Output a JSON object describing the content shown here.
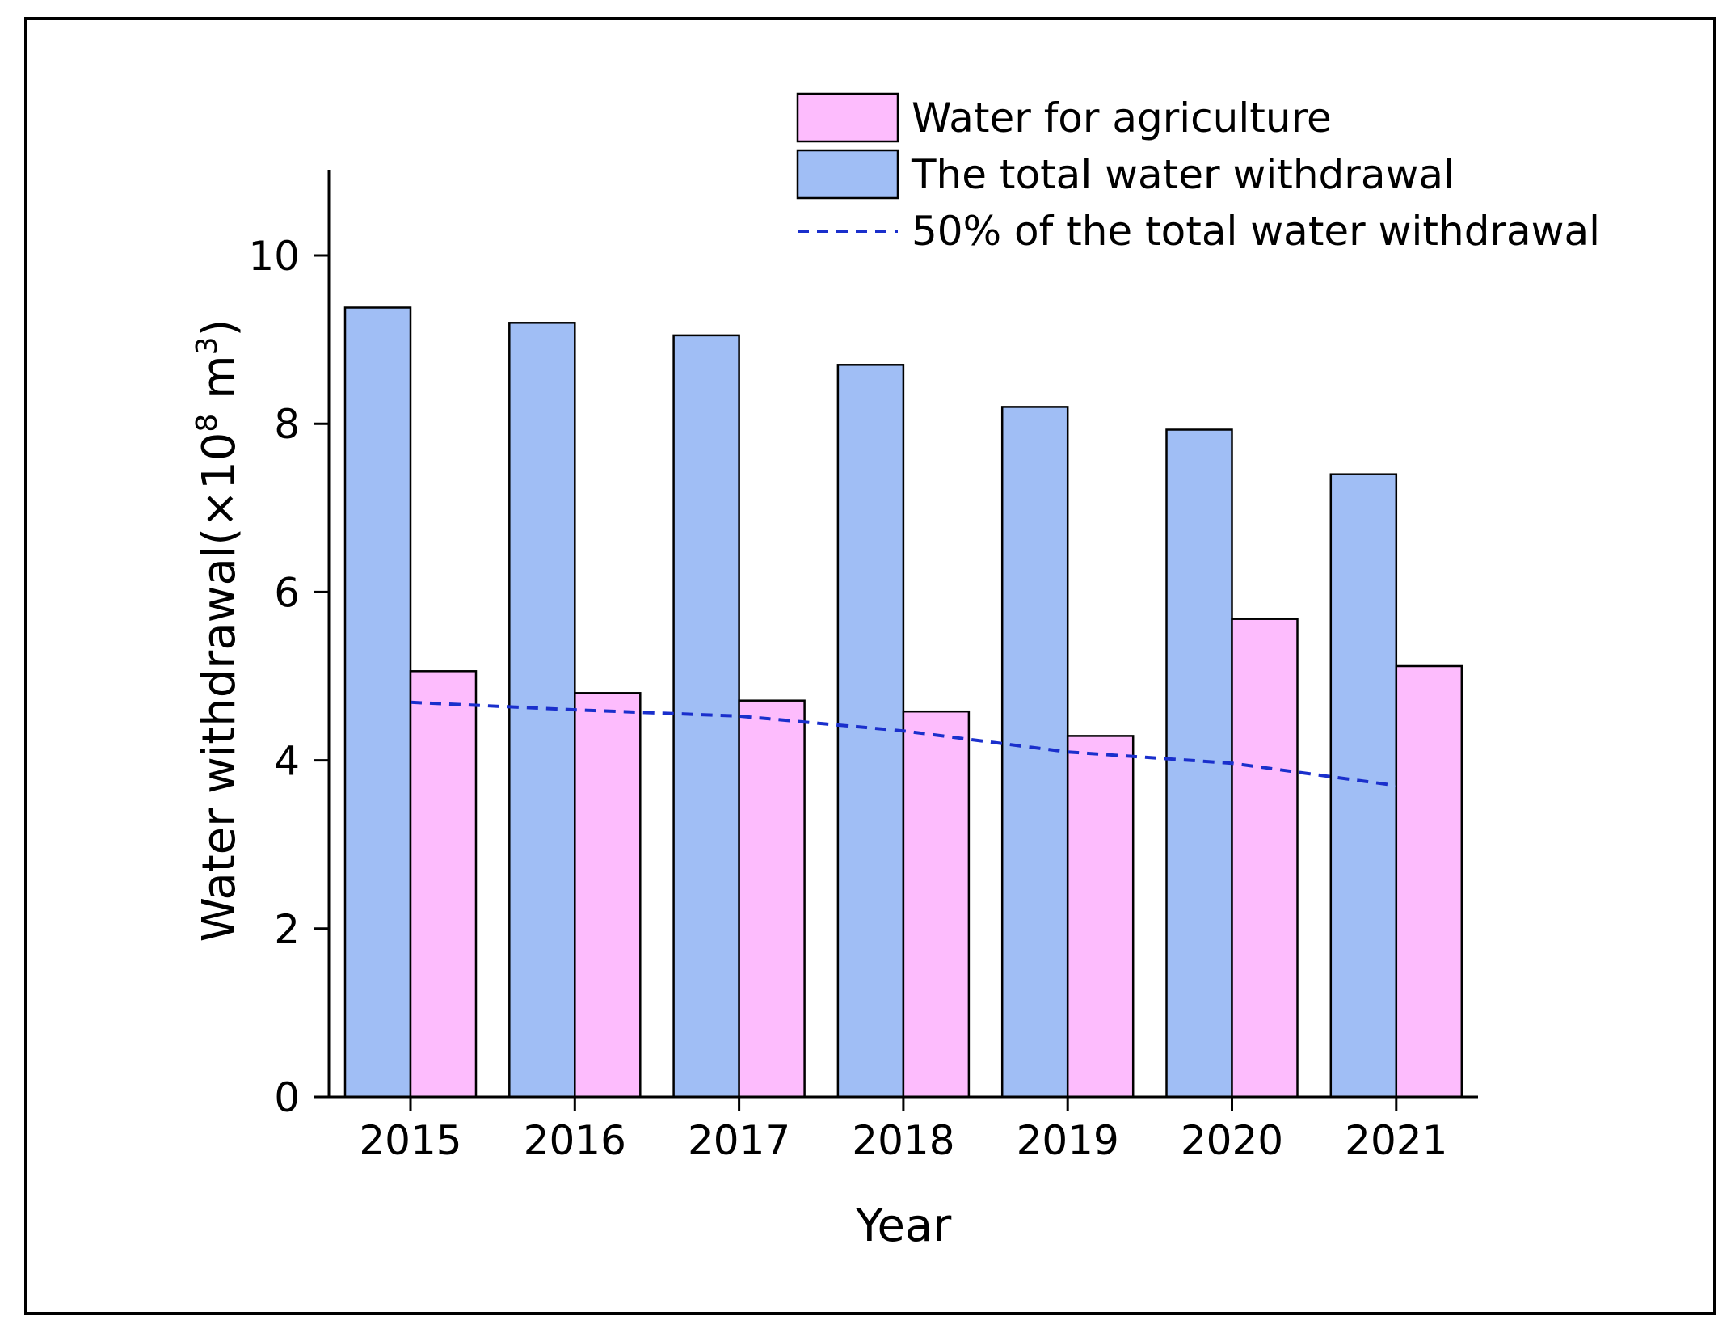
{
  "chart_data": {
    "type": "bar",
    "title": "",
    "xlabel": "Year",
    "ylabel": {
      "main": "Water withdrawal(×10",
      "exp": "8",
      "unit": " m",
      "unit_exp": "3",
      "close": ")"
    },
    "categories": [
      "2015",
      "2016",
      "2017",
      "2018",
      "2019",
      "2020",
      "2021"
    ],
    "ylim": [
      0,
      11
    ],
    "yticks": [
      0,
      2,
      4,
      6,
      8,
      10
    ],
    "ytick_labels": [
      "0",
      "2",
      "4",
      "6",
      "8",
      "10"
    ],
    "series": [
      {
        "name": "The total water withdrawal",
        "kind": "bar",
        "color": "#a0bef5",
        "values": [
          9.38,
          9.2,
          9.05,
          8.7,
          8.2,
          7.93,
          7.4
        ]
      },
      {
        "name": "Water for agriculture",
        "kind": "bar",
        "color": "#fdbcfd",
        "values": [
          5.06,
          4.8,
          4.71,
          4.58,
          4.29,
          5.68,
          5.12
        ]
      },
      {
        "name": "50% of the total water withdrawal",
        "kind": "dashed-line",
        "color": "#1a2fcc",
        "values": [
          4.69,
          4.6,
          4.525,
          4.35,
          4.1,
          3.965,
          3.7
        ]
      }
    ],
    "legend": {
      "placement": "top-right",
      "order": [
        "Water for agriculture",
        "The total water withdrawal",
        "50% of the total water withdrawal"
      ]
    },
    "grid": false,
    "border_color": "#000000"
  }
}
